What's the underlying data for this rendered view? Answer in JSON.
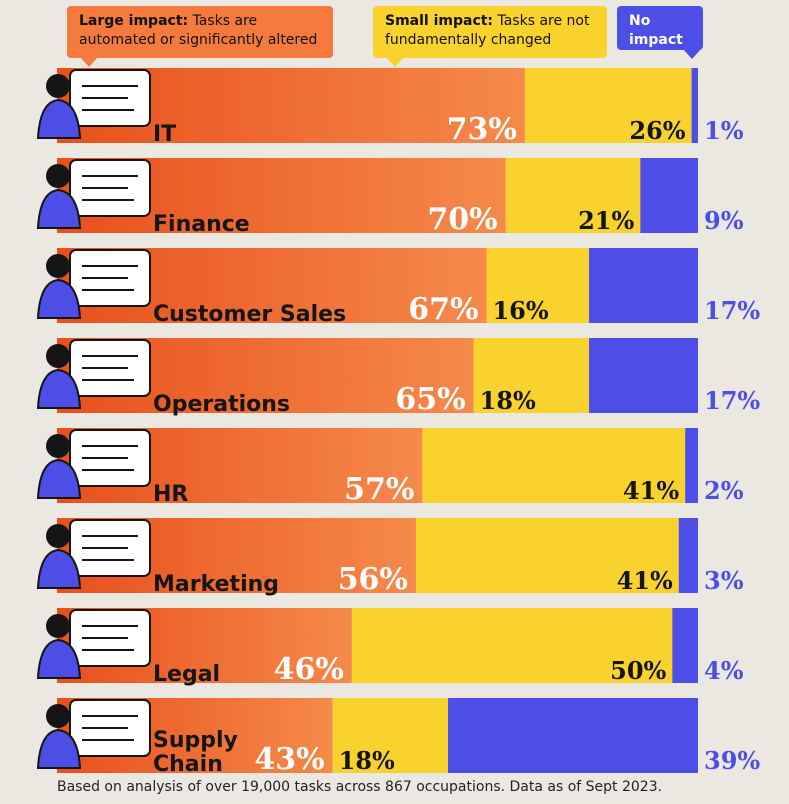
{
  "legend": {
    "large": {
      "title": "Large impact:",
      "text": "Tasks are automated or significantly altered"
    },
    "small": {
      "title": "Small impact:",
      "text": "Tasks are not fundamentally changed"
    },
    "none": {
      "title": "No impact"
    }
  },
  "colors": {
    "large": "#f47a3d",
    "large_dark": "#e8501c",
    "small": "#fad22e",
    "none": "#4d4ee6",
    "background": "#ebe8e2"
  },
  "chart_data": {
    "type": "bar",
    "stacked": true,
    "orientation": "horizontal",
    "categories": [
      "IT",
      "Finance",
      "Customer Sales",
      "Operations",
      "HR",
      "Marketing",
      "Legal",
      "Supply Chain"
    ],
    "series": [
      {
        "name": "Large impact",
        "values": [
          73,
          70,
          67,
          65,
          57,
          56,
          46,
          43
        ],
        "labels": [
          "73%",
          "70%",
          "67%",
          "65%",
          "57%",
          "56%",
          "46%",
          "43%"
        ]
      },
      {
        "name": "Small impact",
        "values": [
          26,
          21,
          16,
          18,
          41,
          41,
          50,
          18
        ],
        "labels": [
          "26%",
          "21%",
          "16%",
          "18%",
          "41%",
          "41%",
          "50%",
          "18%"
        ]
      },
      {
        "name": "No impact",
        "values": [
          1,
          9,
          17,
          17,
          2,
          3,
          4,
          39
        ],
        "labels": [
          "1%",
          "9%",
          "17%",
          "17%",
          "2%",
          "3%",
          "4%",
          "39%"
        ]
      }
    ],
    "xlim": [
      0,
      100
    ],
    "units": "%"
  },
  "footnote": "Based on analysis of over 19,000 tasks across 867 occupations. Data as of Sept 2023."
}
